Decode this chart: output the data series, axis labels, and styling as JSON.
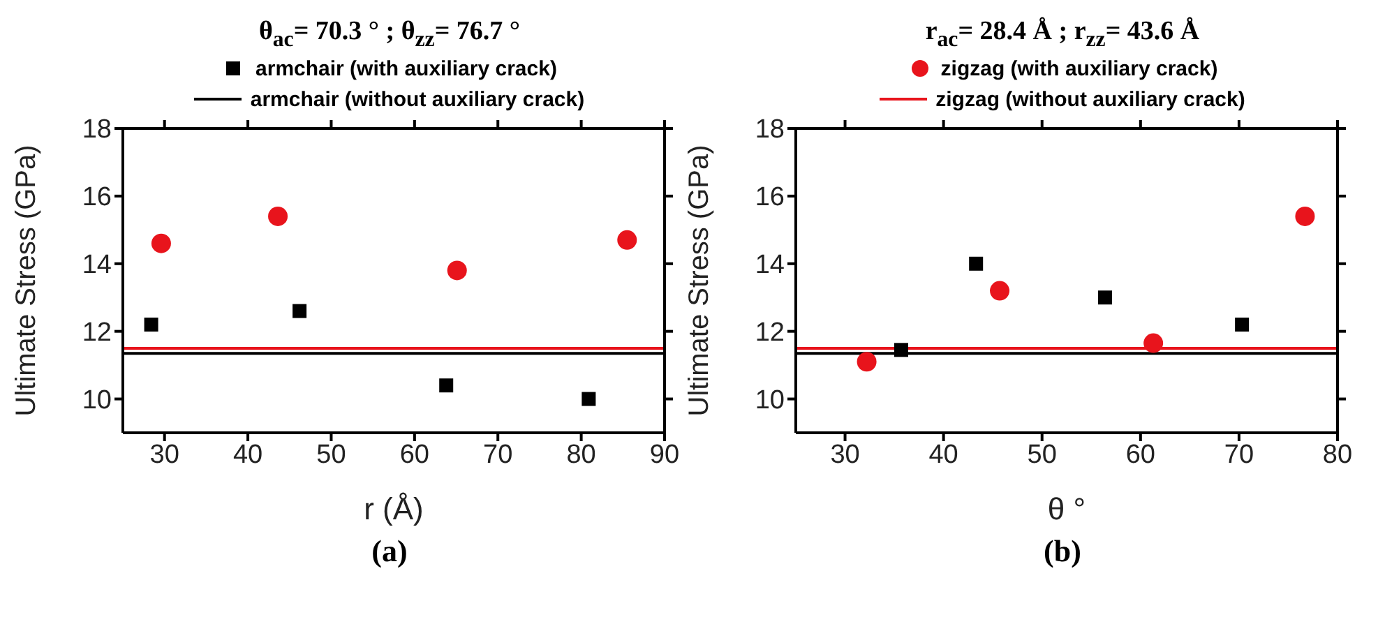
{
  "chart_data": [
    {
      "type": "scatter",
      "title": "θ$_{ac}$= 70.3 ° ;   θ$_{zz}$= 76.7 °",
      "xlabel": "r (Å)",
      "ylabel": "Ultimate Stress (GPa)",
      "annotations": [
        "(a)"
      ],
      "xlim": [
        25,
        90
      ],
      "xticks": [
        30,
        40,
        50,
        60,
        70,
        80,
        90
      ],
      "ylim": [
        9,
        18
      ],
      "yticks": [
        10,
        12,
        14,
        16,
        18
      ],
      "legend": "top",
      "series": [
        {
          "name": "armchair (with auxiliary crack)",
          "marker": "square",
          "color": "#000000",
          "x": [
            28.4,
            46.2,
            63.8,
            80.9
          ],
          "values": [
            12.2,
            12.6,
            10.4,
            10.0
          ]
        },
        {
          "marker": "circle",
          "color": "#e8141c",
          "x": [
            29.6,
            43.6,
            65.1,
            85.5
          ],
          "values": [
            14.6,
            15.4,
            13.8,
            14.7
          ]
        },
        {
          "type": "line",
          "marker": "none",
          "color": "#e8141c",
          "x": [
            25,
            90
          ],
          "values": [
            11.5,
            11.5
          ]
        },
        {
          "name": "armchair (without auxiliary crack)",
          "type": "line",
          "marker": "none",
          "color": "#000000",
          "x": [
            25,
            90
          ],
          "values": [
            11.35,
            11.35
          ]
        }
      ]
    },
    {
      "type": "scatter",
      "title": "r$_{ac}$= 28.4 Å  ;   r$_{zz}$= 43.6 Å",
      "xlabel": "θ °",
      "ylabel": "Ultimate Stress (GPa)",
      "annotations": [
        "(b)"
      ],
      "xlim": [
        25,
        80
      ],
      "xticks": [
        30,
        40,
        50,
        60,
        70,
        80
      ],
      "ylim": [
        9,
        18
      ],
      "yticks": [
        10,
        12,
        14,
        16,
        18
      ],
      "legend": "top",
      "series": [
        {
          "marker": "square",
          "color": "#000000",
          "x": [
            35.7,
            43.3,
            56.4,
            70.3
          ],
          "values": [
            11.45,
            14.0,
            13.0,
            12.2
          ]
        },
        {
          "name": "zigzag (with auxiliary crack)",
          "marker": "circle",
          "color": "#e8141c",
          "x": [
            32.2,
            45.7,
            61.3,
            76.7
          ],
          "values": [
            11.1,
            13.2,
            11.65,
            15.4
          ]
        },
        {
          "name": "zigzag (without auxiliary crack)",
          "type": "line",
          "marker": "none",
          "color": "#e8141c",
          "x": [
            25,
            80
          ],
          "values": [
            11.5,
            11.5
          ]
        },
        {
          "type": "line",
          "marker": "none",
          "color": "#000000",
          "x": [
            25,
            80
          ],
          "values": [
            11.35,
            11.35
          ]
        }
      ]
    }
  ]
}
